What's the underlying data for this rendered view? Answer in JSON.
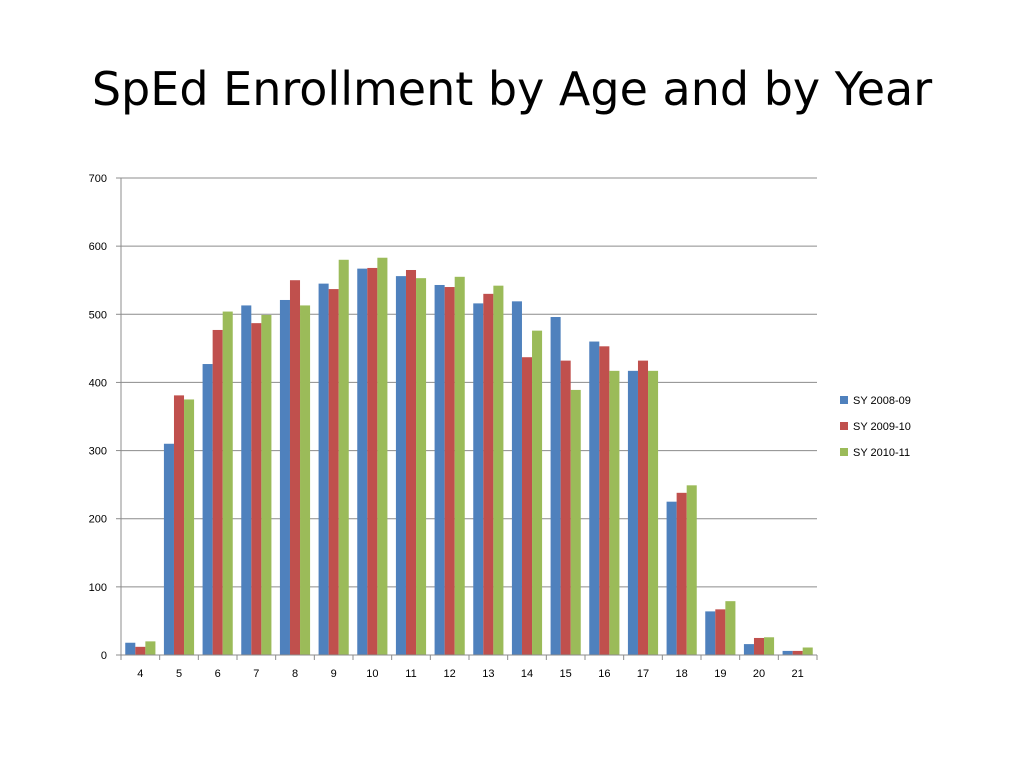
{
  "slide": {
    "title": "SpEd Enrollment by Age and by Year"
  },
  "chart_data": {
    "type": "bar",
    "title": "",
    "xlabel": "",
    "ylabel": "",
    "ylim": [
      0,
      700
    ],
    "yticks": [
      0,
      100,
      200,
      300,
      400,
      500,
      600,
      700
    ],
    "grid": true,
    "legend_position": "right",
    "categories": [
      "4",
      "5",
      "6",
      "7",
      "8",
      "9",
      "10",
      "11",
      "12",
      "13",
      "14",
      "15",
      "16",
      "17",
      "18",
      "19",
      "20",
      "21"
    ],
    "series": [
      {
        "name": "SY 2008-09",
        "color": "#4F81BD",
        "values": [
          18,
          310,
          427,
          513,
          521,
          545,
          567,
          556,
          543,
          516,
          519,
          496,
          460,
          417,
          225,
          64,
          16,
          6
        ]
      },
      {
        "name": "SY 2009-10",
        "color": "#C0504D",
        "values": [
          12,
          381,
          477,
          487,
          550,
          537,
          568,
          565,
          540,
          530,
          437,
          432,
          453,
          432,
          238,
          67,
          25,
          6
        ]
      },
      {
        "name": "SY 2010-11",
        "color": "#9BBB59",
        "values": [
          20,
          375,
          504,
          499,
          513,
          580,
          583,
          553,
          555,
          542,
          476,
          389,
          417,
          417,
          249,
          79,
          26,
          11
        ]
      }
    ]
  }
}
